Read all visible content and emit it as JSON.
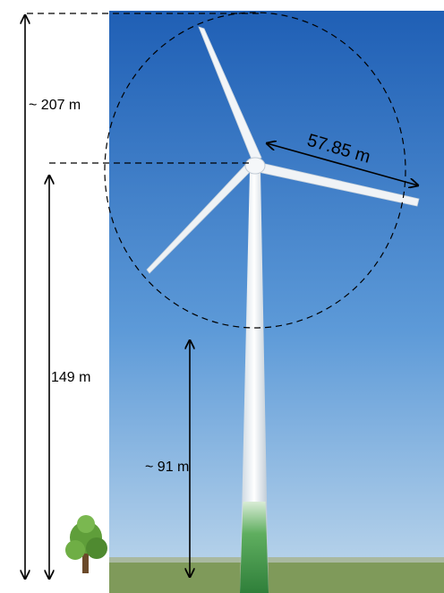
{
  "labels": {
    "total_height": "~ 207 m",
    "hub_height": "149 m",
    "blade_clearance": "~ 91 m",
    "rotor_radius": "57.85 m"
  }
}
